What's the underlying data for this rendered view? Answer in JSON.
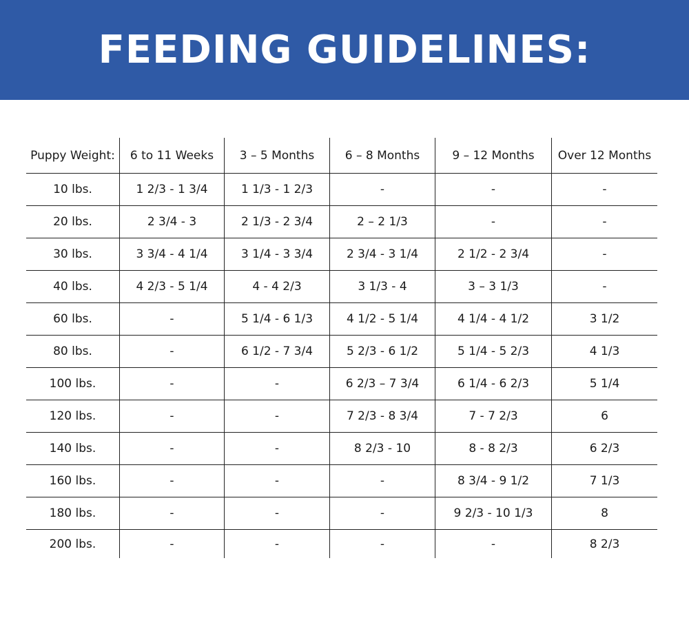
{
  "title": "FEEDING GUIDELINES:",
  "colors": {
    "banner": "#2f5aa6",
    "title_text": "#ffffff"
  },
  "table": {
    "headers": [
      "Puppy Weight:",
      "6 to 11 Weeks",
      "3 – 5 Months",
      "6 – 8 Months",
      "9 – 12 Months",
      "Over 12 Months"
    ],
    "rows": [
      [
        "10 lbs.",
        "1 2/3 - 1 3/4",
        "1 1/3 -  1 2/3",
        "-",
        "-",
        "-"
      ],
      [
        "20 lbs.",
        "2 3/4 - 3",
        "2 1/3 - 2 3/4",
        "2 – 2 1/3",
        "-",
        "-"
      ],
      [
        "30 lbs.",
        "3 3/4 - 4 1/4",
        "3 1/4 - 3 3/4",
        "2 3/4 - 3 1/4",
        "2 1/2 - 2 3/4",
        "-"
      ],
      [
        "40 lbs.",
        "4 2/3 - 5 1/4",
        "4  - 4 2/3",
        "3 1/3 - 4",
        "3 – 3 1/3",
        "-"
      ],
      [
        "60 lbs.",
        "-",
        "5 1/4 - 6 1/3",
        "4 1/2 - 5 1/4",
        "4 1/4 - 4 1/2",
        "3 1/2"
      ],
      [
        "80 lbs.",
        "-",
        "6 1/2 - 7 3/4",
        "5 2/3 - 6 1/2",
        "5 1/4 - 5 2/3",
        "4 1/3"
      ],
      [
        "100 lbs.",
        "-",
        "-",
        "6 2/3 – 7 3/4",
        "6 1/4 - 6 2/3",
        "5 1/4"
      ],
      [
        "120 lbs.",
        "-",
        "-",
        "7 2/3 - 8 3/4",
        "7 - 7 2/3",
        "6"
      ],
      [
        "140 lbs.",
        "-",
        "-",
        "8 2/3 - 10",
        "8 - 8 2/3",
        "6 2/3"
      ],
      [
        "160 lbs.",
        "-",
        "-",
        "-",
        "8 3/4 - 9 1/2",
        "7 1/3"
      ],
      [
        "180 lbs.",
        "-",
        "-",
        "-",
        "9 2/3 - 10 1/3",
        "8"
      ],
      [
        "200 lbs.",
        "-",
        "-",
        "-",
        "-",
        "8 2/3"
      ]
    ]
  }
}
